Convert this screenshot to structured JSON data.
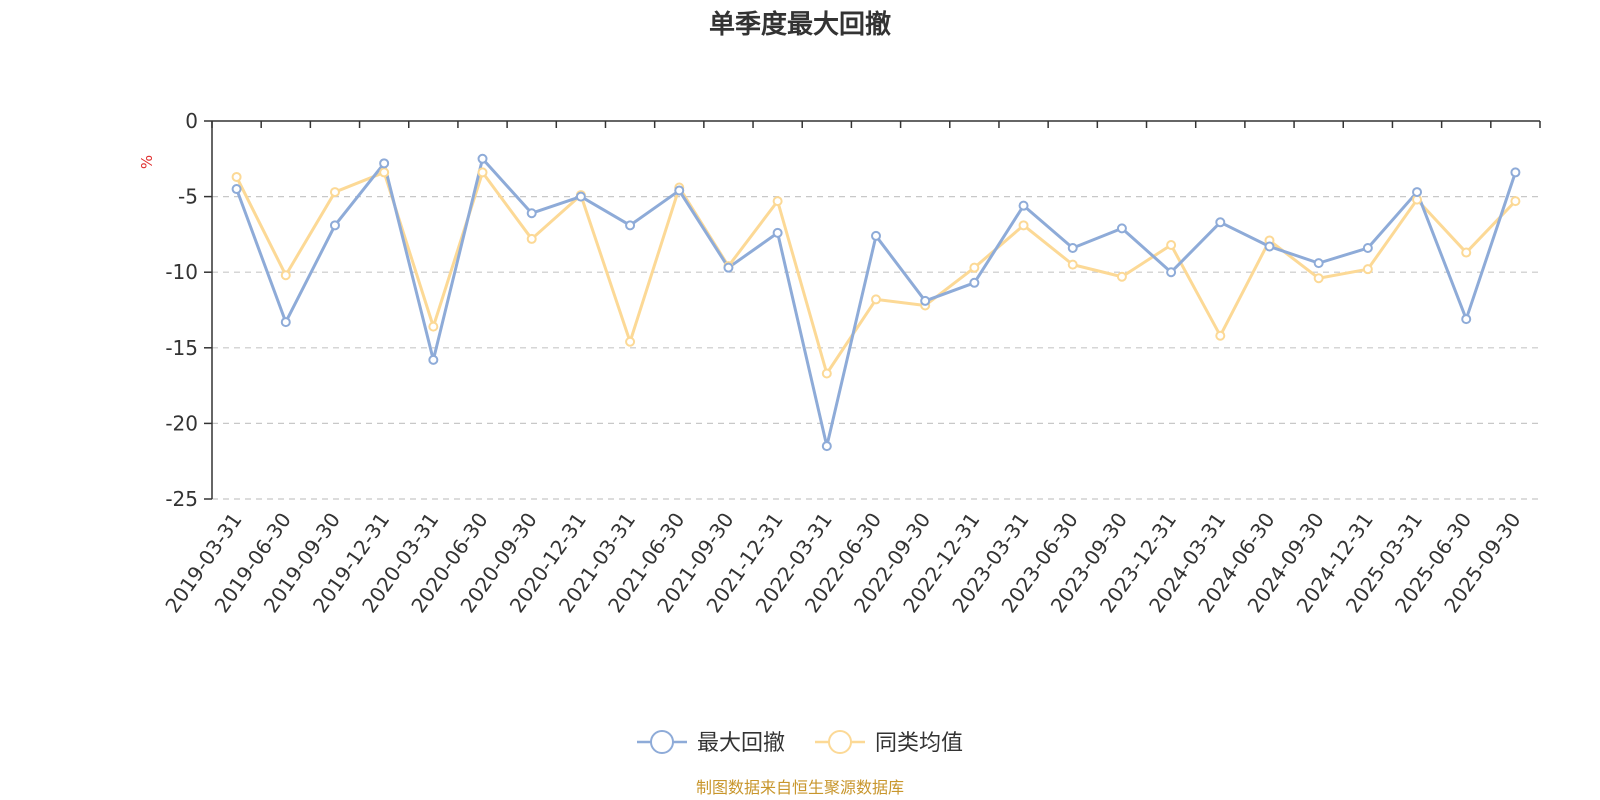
{
  "chart_data": {
    "type": "line",
    "title": "单季度最大回撤",
    "ylabel": "%",
    "xlabel": "",
    "ylim": [
      -25,
      0
    ],
    "yticks": [
      0,
      -5,
      -10,
      -15,
      -20,
      -25
    ],
    "grid": true,
    "legend_position": "bottom-center",
    "categories": [
      "2019-03-31",
      "2019-06-30",
      "2019-09-30",
      "2019-12-31",
      "2020-03-31",
      "2020-06-30",
      "2020-09-30",
      "2020-12-31",
      "2021-03-31",
      "2021-06-30",
      "2021-09-30",
      "2021-12-31",
      "2022-03-31",
      "2022-06-30",
      "2022-09-30",
      "2022-12-31",
      "2023-03-31",
      "2023-06-30",
      "2023-09-30",
      "2023-12-31",
      "2024-03-31",
      "2024-06-30",
      "2024-09-30",
      "2024-12-31",
      "2025-03-31",
      "2025-06-30",
      "2025-09-30"
    ],
    "series": [
      {
        "name": "最大回撤",
        "color": "#8eabd8",
        "values": [
          -4.5,
          -13.3,
          -6.9,
          -2.8,
          -15.8,
          -2.5,
          -6.1,
          -5.0,
          -6.9,
          -4.6,
          -9.7,
          -7.4,
          -21.5,
          -7.6,
          -11.9,
          -10.7,
          -5.6,
          -8.4,
          -7.1,
          -10.0,
          -6.7,
          -8.3,
          -9.4,
          -8.4,
          -4.7,
          -13.1,
          -3.4
        ]
      },
      {
        "name": "同类均值",
        "color": "#fcd996",
        "values": [
          -3.7,
          -10.2,
          -4.7,
          -3.4,
          -13.6,
          -3.4,
          -7.8,
          -4.9,
          -14.6,
          -4.4,
          -9.6,
          -5.3,
          -16.7,
          -11.8,
          -12.2,
          -9.7,
          -6.9,
          -9.5,
          -10.3,
          -8.2,
          -14.2,
          -7.9,
          -10.4,
          -9.8,
          -5.2,
          -8.7,
          -5.3
        ]
      }
    ],
    "source": "制图数据来自恒生聚源数据库"
  }
}
